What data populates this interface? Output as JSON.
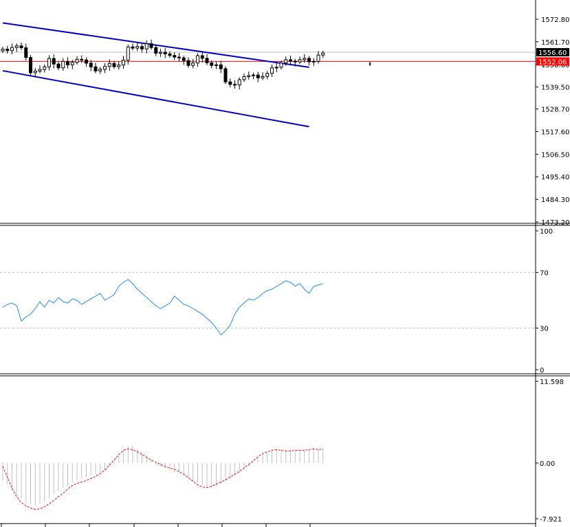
{
  "chart_data": [
    {
      "type": "candlestick",
      "panel": "price",
      "ylim": [
        1473.2,
        1578.0
      ],
      "yticks": [
        "1572.80",
        "1561.70",
        "1550.60",
        "1539.50",
        "1528.70",
        "1517.60",
        "1506.50",
        "1495.40",
        "1484.30",
        "1473.20"
      ],
      "tick_values": [
        1572.8,
        1561.7,
        1550.6,
        1539.5,
        1528.7,
        1517.6,
        1506.5,
        1495.4,
        1484.3,
        1473.2
      ],
      "bid_label": "1556.60",
      "bid_value": 1556.6,
      "hline_label": "1552.06",
      "hline_value": 1552.06,
      "bar_count": 70,
      "closes": [
        1558.1,
        1557.4,
        1558.9,
        1559.7,
        1558.8,
        1554.0,
        1546.5,
        1547.3,
        1548.1,
        1549.4,
        1553.5,
        1550.8,
        1548.9,
        1552.1,
        1550.4,
        1551.6,
        1553.1,
        1552.8,
        1551.2,
        1549.4,
        1547.4,
        1548.2,
        1549.6,
        1551.1,
        1549.5,
        1550.3,
        1552.7,
        1559.2,
        1558.6,
        1559.4,
        1558.2,
        1560.8,
        1558.9,
        1556.1,
        1556.6,
        1555.8,
        1555.0,
        1554.2,
        1553.8,
        1552.5,
        1550.1,
        1551.3,
        1554.9,
        1553.6,
        1551.4,
        1550.1,
        1550.4,
        1548.5,
        1542.0,
        1540.8,
        1540.5,
        1543.1,
        1544.6,
        1545.1,
        1545.4,
        1544.0,
        1544.7,
        1546.2,
        1548.9,
        1549.2,
        1551.3,
        1552.9,
        1552.2,
        1551.8,
        1552.9,
        1553.6,
        1551.9,
        1552.1,
        1555.2,
        1556.2
      ],
      "trend_channel": {
        "upper": [
          [
            0,
            1571.0
          ],
          [
            66,
            1549.2
          ]
        ],
        "lower": [
          [
            0,
            1547.5
          ],
          [
            66,
            1520.0
          ]
        ]
      }
    },
    {
      "type": "line",
      "panel": "rsi",
      "ylim": [
        0,
        100
      ],
      "yticks": [
        "100",
        "70",
        "30",
        "0"
      ],
      "tick_values": [
        100,
        70,
        30,
        0
      ],
      "levels": [
        70,
        30
      ],
      "series": [
        {
          "values": [
            45,
            47,
            48,
            46,
            35,
            38,
            40,
            44,
            49,
            45,
            50,
            48,
            52,
            49,
            48,
            51,
            50,
            47,
            49,
            51,
            53,
            55,
            50,
            52,
            54,
            60,
            63,
            65,
            62,
            58,
            55,
            52,
            49,
            46,
            44,
            46,
            48,
            53,
            50,
            47,
            46,
            44,
            42,
            40,
            37,
            34,
            30,
            25,
            28,
            32,
            40,
            45,
            48,
            51,
            50,
            52,
            55,
            57,
            58,
            60,
            62,
            64,
            63,
            60,
            62,
            58,
            55,
            60,
            61,
            62
          ]
        }
      ]
    },
    {
      "type": "bar+line",
      "panel": "macd",
      "ylim": [
        -7.921,
        11.598
      ],
      "yticks": [
        "11.598",
        "0.00",
        "-7.921"
      ],
      "tick_values": [
        11.598,
        0.0,
        -7.921
      ],
      "histogram": [
        -2.5,
        -3.0,
        -3.8,
        -4.5,
        -5.0,
        -5.5,
        -5.8,
        -6.0,
        -5.8,
        -5.5,
        -5.0,
        -4.5,
        -4.0,
        -3.5,
        -3.2,
        -2.8,
        -2.5,
        -2.2,
        -2.0,
        -1.7,
        -1.5,
        -1.2,
        -1.0,
        -0.5,
        0.2,
        1.0,
        1.8,
        2.4,
        2.5,
        2.0,
        1.5,
        1.0,
        0.4,
        -0.2,
        -0.5,
        -0.8,
        -1.1,
        -1.3,
        -1.5,
        -1.8,
        -2.1,
        -2.5,
        -2.8,
        -3.2,
        -3.4,
        -3.5,
        -3.3,
        -3.0,
        -2.6,
        -2.2,
        -1.8,
        -1.4,
        -1.0,
        -0.5,
        0.2,
        0.8,
        1.2,
        1.6,
        1.8,
        1.9,
        2.0,
        2.0,
        1.9,
        1.8,
        1.8,
        1.9,
        2.0,
        2.0,
        2.0,
        2.1
      ],
      "signal": [
        -0.5,
        -2.0,
        -3.6,
        -4.8,
        -5.6,
        -6.1,
        -6.4,
        -6.6,
        -6.5,
        -6.2,
        -5.8,
        -5.3,
        -4.8,
        -4.3,
        -3.7,
        -3.2,
        -2.9,
        -2.7,
        -2.5,
        -2.2,
        -1.9,
        -1.5,
        -1.0,
        -0.3,
        0.4,
        1.2,
        1.8,
        2.0,
        1.9,
        1.6,
        1.2,
        0.8,
        0.4,
        0.1,
        -0.2,
        -0.5,
        -0.7,
        -0.9,
        -1.2,
        -1.6,
        -2.1,
        -2.6,
        -3.1,
        -3.4,
        -3.5,
        -3.3,
        -3.0,
        -2.7,
        -2.4,
        -2.0,
        -1.6,
        -1.2,
        -0.7,
        -0.2,
        0.3,
        0.9,
        1.3,
        1.6,
        1.8,
        1.9,
        1.8,
        1.7,
        1.7,
        1.8,
        1.8,
        1.8,
        1.9,
        2.0,
        1.9,
        2.0
      ]
    }
  ],
  "colors": {
    "background": "#ffffff",
    "axis": "#000000",
    "candle_up_fill": "#ffffff",
    "candle_down_fill": "#000000",
    "candle_outline": "#000000",
    "trend_channel": "#0000c8",
    "hline": "#ff0000",
    "hline_tag": "#ff0000",
    "bid_line": "#c0c0c0",
    "bid_tag": "#000000",
    "rsi_line": "#1e90ff",
    "level_line": "#c0c0c0",
    "macd_hist": "#c0c0c0",
    "macd_signal": "#ff0000"
  }
}
